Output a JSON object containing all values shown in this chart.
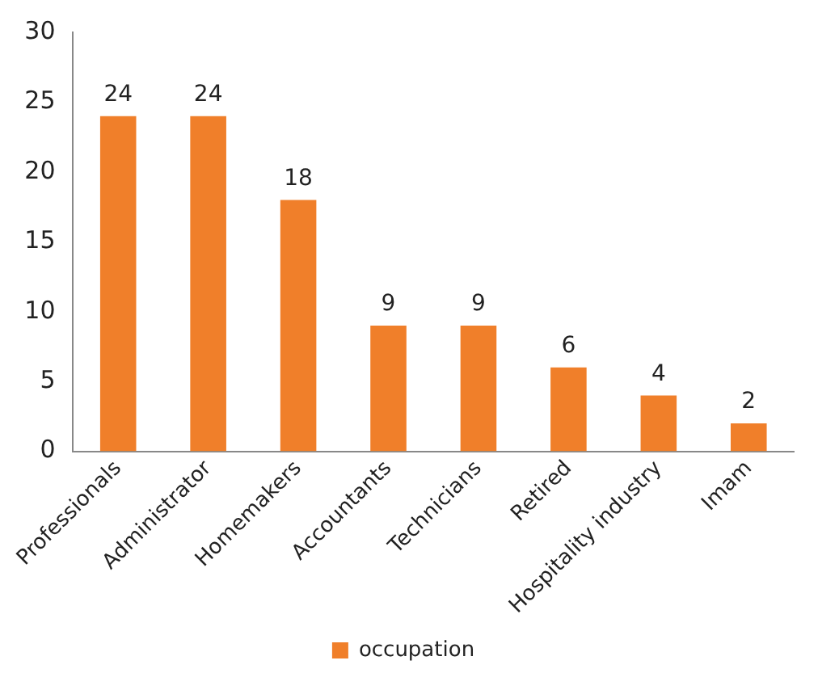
{
  "chart_data": {
    "type": "bar",
    "categories": [
      "Professionals",
      "Administrator",
      "Homemakers",
      "Accountants",
      "Technicians",
      "Retired",
      "Hospitality industry",
      "Imam"
    ],
    "series": [
      {
        "name": "occupation",
        "color": "#f07f2a",
        "values": [
          24,
          24,
          18,
          9,
          9,
          6,
          4,
          2
        ]
      }
    ],
    "ylim": [
      0,
      30
    ],
    "yticks": [
      0,
      5,
      10,
      15,
      20,
      25,
      30
    ],
    "grid": false,
    "legend": "bottom",
    "data_labels": true
  }
}
